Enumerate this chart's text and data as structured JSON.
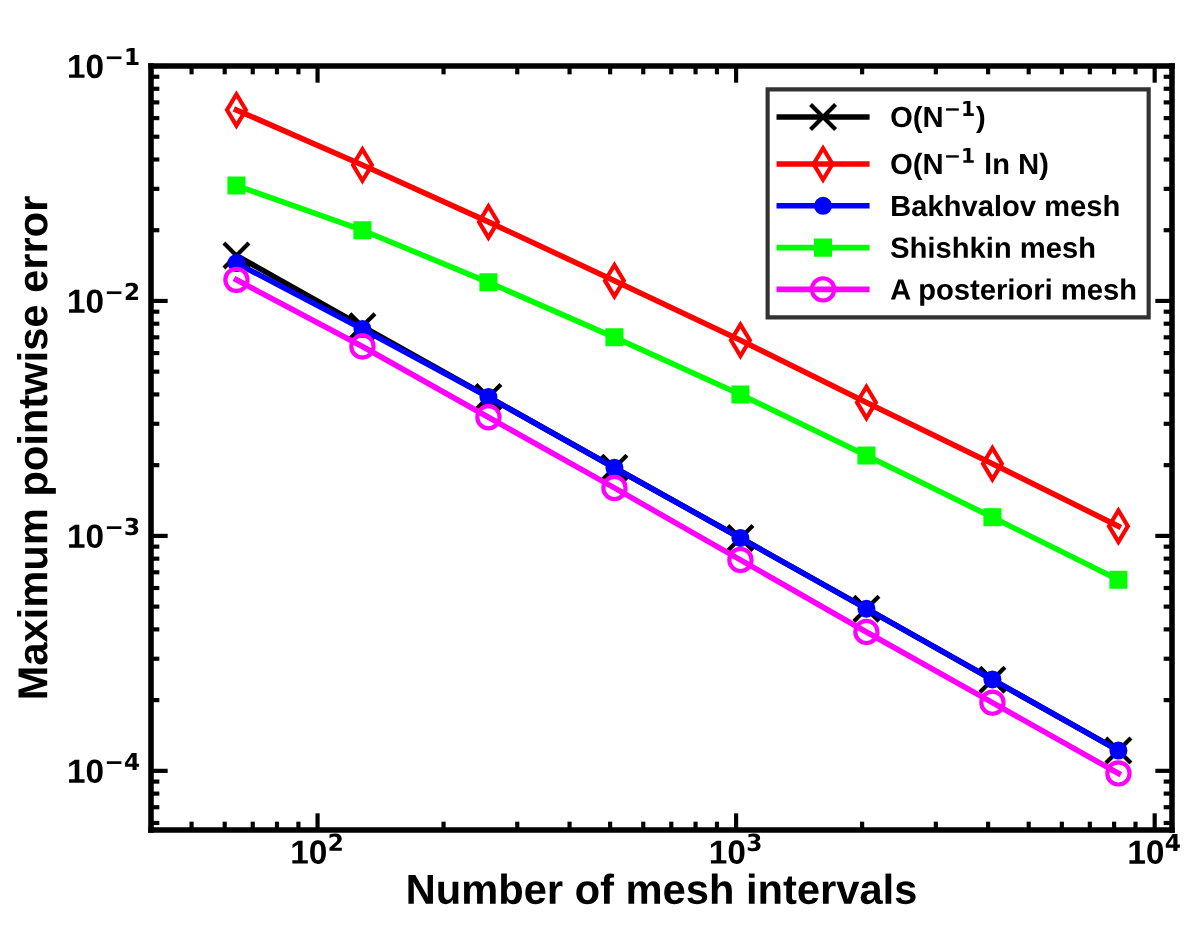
{
  "chart_data": {
    "type": "line",
    "xlabel": "Number of mesh intervals",
    "ylabel": "Maximum pointwise error",
    "x": [
      64,
      128,
      256,
      512,
      1024,
      2048,
      4096,
      8192
    ],
    "series": [
      {
        "name": "O(N$^{−1}$)",
        "color": "#000000",
        "marker": "cross",
        "values": [
          0.0156,
          0.0078,
          0.0039,
          0.00195,
          0.00098,
          0.00049,
          0.000244,
          0.000122
        ]
      },
      {
        "name": "O(N$^{−1}$ ln N)",
        "color": "#ff0000",
        "marker": "diamond",
        "values": [
          0.065,
          0.0379,
          0.0217,
          0.0122,
          0.0068,
          0.0037,
          0.00203,
          0.0011
        ]
      },
      {
        "name": "Bakhvalov mesh",
        "color": "#0000ff",
        "marker": "circle",
        "values": [
          0.0145,
          0.0076,
          0.0039,
          0.00195,
          0.00098,
          0.00049,
          0.000245,
          0.000122
        ]
      },
      {
        "name": "Shishkin mesh",
        "color": "#00ff00",
        "marker": "square",
        "values": [
          0.031,
          0.02,
          0.012,
          0.007,
          0.004,
          0.0022,
          0.0012,
          0.00065
        ]
      },
      {
        "name": "A posteriori mesh",
        "color": "#ff00ff",
        "marker": "open circle",
        "values": [
          0.0123,
          0.0064,
          0.0032,
          0.0016,
          0.00079,
          0.00039,
          0.000195,
          9.75e-05
        ]
      }
    ],
    "log": "xy",
    "xlim": [
      40,
      11000
    ],
    "ylim": [
      5.6e-05,
      0.1
    ],
    "xticks": [
      {
        "value": 100,
        "label": "10$^{2}$"
      },
      {
        "value": 1000,
        "label": "10$^{3}$"
      },
      {
        "value": 10000,
        "label": "10$^{4}$"
      }
    ],
    "yticks": [
      {
        "value": 0.0001,
        "label": "10$^{−4}$"
      },
      {
        "value": 0.001,
        "label": "10$^{−3}$"
      },
      {
        "value": 0.01,
        "label": "10$^{−2}$"
      },
      {
        "value": 0.1,
        "label": "10$^{−1}$"
      }
    ],
    "grid": false,
    "legend": "top right",
    "line_style": "solid"
  }
}
